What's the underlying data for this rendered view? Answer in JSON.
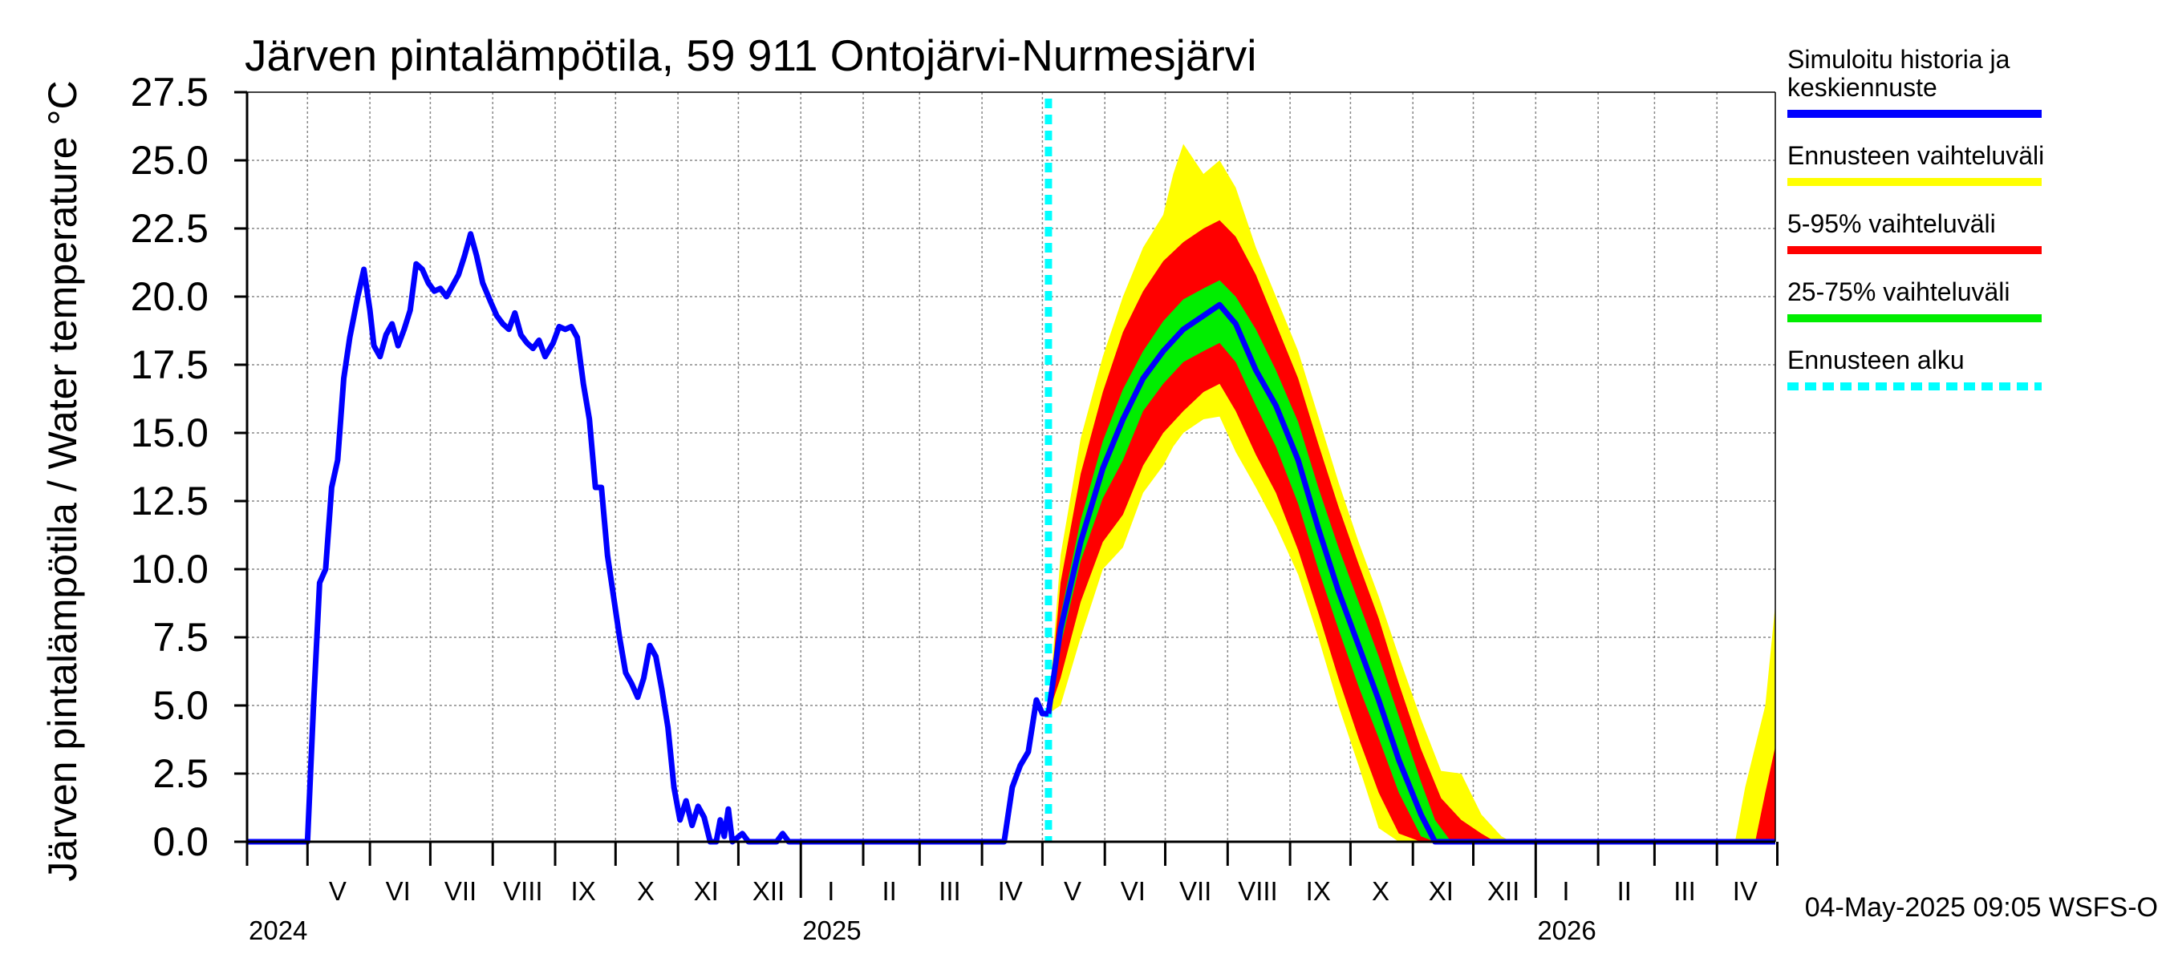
{
  "chart_data": {
    "type": "line",
    "title": "Järven pintalämpötila, 59 911 Ontojärvi-Nurmesjärvi",
    "ylabel": "Järven pintalämpötila / Water temperature °C",
    "xlabel": "",
    "ylim": [
      0,
      27.5
    ],
    "y_ticks": [
      "0.0",
      "2.5",
      "5.0",
      "7.5",
      "10.0",
      "12.5",
      "15.0",
      "17.5",
      "20.0",
      "22.5",
      "25.0",
      "27.5"
    ],
    "x_range": [
      "2024-04-01",
      "2026-04-30"
    ],
    "grid": true,
    "month_labels": [
      {
        "label": "V",
        "date": "2024-05-16"
      },
      {
        "label": "VI",
        "date": "2024-06-15"
      },
      {
        "label": "VII",
        "date": "2024-07-16"
      },
      {
        "label": "VIII",
        "date": "2024-08-16"
      },
      {
        "label": "IX",
        "date": "2024-09-15"
      },
      {
        "label": "X",
        "date": "2024-10-16"
      },
      {
        "label": "XI",
        "date": "2024-11-15"
      },
      {
        "label": "XII",
        "date": "2024-12-16"
      },
      {
        "label": "I",
        "date": "2025-01-16"
      },
      {
        "label": "II",
        "date": "2025-02-14"
      },
      {
        "label": "III",
        "date": "2025-03-16"
      },
      {
        "label": "IV",
        "date": "2025-04-15"
      },
      {
        "label": "V",
        "date": "2025-05-16"
      },
      {
        "label": "VI",
        "date": "2025-06-15"
      },
      {
        "label": "VII",
        "date": "2025-07-16"
      },
      {
        "label": "VIII",
        "date": "2025-08-16"
      },
      {
        "label": "IX",
        "date": "2025-09-15"
      },
      {
        "label": "X",
        "date": "2025-10-16"
      },
      {
        "label": "XI",
        "date": "2025-11-15"
      },
      {
        "label": "XII",
        "date": "2025-12-16"
      },
      {
        "label": "I",
        "date": "2026-01-16"
      },
      {
        "label": "II",
        "date": "2026-02-14"
      },
      {
        "label": "III",
        "date": "2026-03-16"
      },
      {
        "label": "IV",
        "date": "2026-04-15"
      }
    ],
    "year_labels": [
      {
        "label": "2024",
        "date": "2024-04-01"
      },
      {
        "label": "2025",
        "date": "2025-01-01"
      },
      {
        "label": "2026",
        "date": "2026-01-01"
      }
    ],
    "forecast_start": "2025-05-04",
    "colors": {
      "history": "#0000ff",
      "full_range": "#ffff00",
      "p5_95": "#ff0000",
      "p25_75": "#00ee00",
      "forecast_start": "#00ffff",
      "grid": "#888888"
    },
    "history": [
      [
        "2024-04-01",
        0
      ],
      [
        "2024-05-01",
        0
      ],
      [
        "2024-05-04",
        5.0
      ],
      [
        "2024-05-07",
        9.5
      ],
      [
        "2024-05-10",
        10.0
      ],
      [
        "2024-05-13",
        13.0
      ],
      [
        "2024-05-16",
        14.0
      ],
      [
        "2024-05-19",
        17.0
      ],
      [
        "2024-05-22",
        18.5
      ],
      [
        "2024-05-26",
        20.0
      ],
      [
        "2024-05-29",
        21.0
      ],
      [
        "2024-06-01",
        19.5
      ],
      [
        "2024-06-03",
        18.2
      ],
      [
        "2024-06-06",
        17.8
      ],
      [
        "2024-06-09",
        18.6
      ],
      [
        "2024-06-12",
        19.0
      ],
      [
        "2024-06-15",
        18.2
      ],
      [
        "2024-06-18",
        18.8
      ],
      [
        "2024-06-21",
        19.5
      ],
      [
        "2024-06-24",
        21.2
      ],
      [
        "2024-06-27",
        21.0
      ],
      [
        "2024-06-30",
        20.5
      ],
      [
        "2024-07-03",
        20.2
      ],
      [
        "2024-07-06",
        20.3
      ],
      [
        "2024-07-09",
        20.0
      ],
      [
        "2024-07-12",
        20.4
      ],
      [
        "2024-07-15",
        20.8
      ],
      [
        "2024-07-18",
        21.5
      ],
      [
        "2024-07-21",
        22.3
      ],
      [
        "2024-07-24",
        21.5
      ],
      [
        "2024-07-27",
        20.5
      ],
      [
        "2024-07-31",
        19.8
      ],
      [
        "2024-08-03",
        19.3
      ],
      [
        "2024-08-06",
        19.0
      ],
      [
        "2024-08-09",
        18.8
      ],
      [
        "2024-08-12",
        19.4
      ],
      [
        "2024-08-15",
        18.6
      ],
      [
        "2024-08-18",
        18.3
      ],
      [
        "2024-08-21",
        18.1
      ],
      [
        "2024-08-24",
        18.4
      ],
      [
        "2024-08-27",
        17.8
      ],
      [
        "2024-08-31",
        18.3
      ],
      [
        "2024-09-03",
        18.9
      ],
      [
        "2024-09-06",
        18.8
      ],
      [
        "2024-09-09",
        18.9
      ],
      [
        "2024-09-12",
        18.5
      ],
      [
        "2024-09-15",
        16.8
      ],
      [
        "2024-09-18",
        15.5
      ],
      [
        "2024-09-21",
        13.0
      ],
      [
        "2024-09-24",
        13.0
      ],
      [
        "2024-09-27",
        10.5
      ],
      [
        "2024-09-30",
        9.0
      ],
      [
        "2024-10-03",
        7.5
      ],
      [
        "2024-10-06",
        6.2
      ],
      [
        "2024-10-09",
        5.8
      ],
      [
        "2024-10-12",
        5.3
      ],
      [
        "2024-10-15",
        6.0
      ],
      [
        "2024-10-18",
        7.2
      ],
      [
        "2024-10-21",
        6.8
      ],
      [
        "2024-10-24",
        5.6
      ],
      [
        "2024-10-27",
        4.2
      ],
      [
        "2024-10-30",
        2.0
      ],
      [
        "2024-11-02",
        0.8
      ],
      [
        "2024-11-05",
        1.5
      ],
      [
        "2024-11-08",
        0.6
      ],
      [
        "2024-11-11",
        1.3
      ],
      [
        "2024-11-14",
        0.9
      ],
      [
        "2024-11-17",
        0.0
      ],
      [
        "2024-11-20",
        0.0
      ],
      [
        "2024-11-22",
        0.8
      ],
      [
        "2024-11-24",
        0.2
      ],
      [
        "2024-11-26",
        1.2
      ],
      [
        "2024-11-28",
        0.0
      ],
      [
        "2024-12-03",
        0.3
      ],
      [
        "2024-12-06",
        0.0
      ],
      [
        "2024-12-20",
        0.0
      ],
      [
        "2024-12-23",
        0.3
      ],
      [
        "2024-12-26",
        0.0
      ],
      [
        "2025-04-12",
        0.0
      ],
      [
        "2025-04-16",
        2.0
      ],
      [
        "2025-04-20",
        2.8
      ],
      [
        "2025-04-24",
        3.3
      ],
      [
        "2025-04-28",
        5.2
      ],
      [
        "2025-05-01",
        4.7
      ],
      [
        "2025-05-04",
        4.7
      ]
    ],
    "forecast_median": [
      [
        "2025-05-04",
        4.7
      ],
      [
        "2025-05-10",
        7.8
      ],
      [
        "2025-05-20",
        11.0
      ],
      [
        "2025-05-31",
        13.7
      ],
      [
        "2025-06-10",
        15.5
      ],
      [
        "2025-06-20",
        17.0
      ],
      [
        "2025-06-30",
        18.0
      ],
      [
        "2025-07-10",
        18.8
      ],
      [
        "2025-07-20",
        19.3
      ],
      [
        "2025-07-28",
        19.7
      ],
      [
        "2025-08-05",
        19.0
      ],
      [
        "2025-08-15",
        17.3
      ],
      [
        "2025-08-25",
        16.0
      ],
      [
        "2025-09-05",
        14.0
      ],
      [
        "2025-09-15",
        11.5
      ],
      [
        "2025-09-25",
        9.2
      ],
      [
        "2025-10-05",
        7.2
      ],
      [
        "2025-10-15",
        5.2
      ],
      [
        "2025-10-25",
        3.0
      ],
      [
        "2025-11-05",
        1.0
      ],
      [
        "2025-11-12",
        0.0
      ],
      [
        "2026-04-30",
        0.0
      ]
    ],
    "band_25_75": [
      [
        "2025-05-04",
        4.7,
        4.7
      ],
      [
        "2025-05-10",
        7.2,
        8.3
      ],
      [
        "2025-05-20",
        10.3,
        11.8
      ],
      [
        "2025-05-31",
        12.6,
        14.7
      ],
      [
        "2025-06-10",
        14.0,
        16.6
      ],
      [
        "2025-06-20",
        15.8,
        18.0
      ],
      [
        "2025-06-30",
        16.8,
        19.1
      ],
      [
        "2025-07-10",
        17.6,
        19.9
      ],
      [
        "2025-07-20",
        18.0,
        20.3
      ],
      [
        "2025-07-28",
        18.3,
        20.6
      ],
      [
        "2025-08-05",
        17.6,
        20.0
      ],
      [
        "2025-08-15",
        16.0,
        18.8
      ],
      [
        "2025-08-25",
        14.5,
        17.3
      ],
      [
        "2025-09-05",
        12.4,
        15.4
      ],
      [
        "2025-09-15",
        10.0,
        13.0
      ],
      [
        "2025-09-25",
        7.8,
        10.8
      ],
      [
        "2025-10-05",
        5.7,
        8.8
      ],
      [
        "2025-10-15",
        3.8,
        6.8
      ],
      [
        "2025-10-25",
        1.8,
        4.6
      ],
      [
        "2025-11-05",
        0.2,
        2.2
      ],
      [
        "2025-11-12",
        0.0,
        0.8
      ],
      [
        "2025-11-20",
        0.0,
        0.0
      ]
    ],
    "band_5_95": [
      [
        "2025-05-04",
        4.7,
        4.7
      ],
      [
        "2025-05-10",
        6.0,
        9.5
      ],
      [
        "2025-05-20",
        8.8,
        13.5
      ],
      [
        "2025-05-31",
        11.0,
        16.5
      ],
      [
        "2025-06-10",
        12.0,
        18.7
      ],
      [
        "2025-06-20",
        13.8,
        20.2
      ],
      [
        "2025-06-30",
        15.0,
        21.3
      ],
      [
        "2025-07-10",
        15.8,
        22.0
      ],
      [
        "2025-07-20",
        16.5,
        22.5
      ],
      [
        "2025-07-28",
        16.8,
        22.8
      ],
      [
        "2025-08-05",
        15.8,
        22.2
      ],
      [
        "2025-08-15",
        14.2,
        20.8
      ],
      [
        "2025-08-25",
        12.8,
        19.0
      ],
      [
        "2025-09-05",
        10.7,
        17.0
      ],
      [
        "2025-09-15",
        8.4,
        14.6
      ],
      [
        "2025-09-25",
        6.0,
        12.3
      ],
      [
        "2025-10-05",
        3.8,
        10.2
      ],
      [
        "2025-10-15",
        1.8,
        8.2
      ],
      [
        "2025-10-25",
        0.3,
        5.8
      ],
      [
        "2025-11-05",
        0.0,
        3.4
      ],
      [
        "2025-11-15",
        0.0,
        1.6
      ],
      [
        "2025-11-25",
        0.0,
        0.8
      ],
      [
        "2025-12-05",
        0.0,
        0.3
      ],
      [
        "2025-12-12",
        0.0,
        0.0
      ],
      [
        "2026-04-20",
        0.0,
        0.0
      ],
      [
        "2026-04-25",
        0.0,
        1.8
      ],
      [
        "2026-04-30",
        0.0,
        3.5
      ]
    ],
    "band_full": [
      [
        "2025-05-04",
        4.7,
        4.7
      ],
      [
        "2025-05-10",
        5.0,
        10.5
      ],
      [
        "2025-05-20",
        7.5,
        14.8
      ],
      [
        "2025-05-31",
        10.0,
        17.8
      ],
      [
        "2025-06-10",
        10.8,
        20.0
      ],
      [
        "2025-06-20",
        12.8,
        21.8
      ],
      [
        "2025-06-30",
        13.8,
        23.0
      ],
      [
        "2025-07-05",
        14.5,
        24.5
      ],
      [
        "2025-07-10",
        15.0,
        25.6
      ],
      [
        "2025-07-20",
        15.5,
        24.5
      ],
      [
        "2025-07-28",
        15.6,
        25.0
      ],
      [
        "2025-08-05",
        14.3,
        24.0
      ],
      [
        "2025-08-15",
        13.0,
        21.8
      ],
      [
        "2025-08-25",
        11.6,
        20.0
      ],
      [
        "2025-09-05",
        9.8,
        18.0
      ],
      [
        "2025-09-15",
        7.5,
        15.6
      ],
      [
        "2025-09-25",
        5.0,
        13.2
      ],
      [
        "2025-10-05",
        2.8,
        11.0
      ],
      [
        "2025-10-15",
        0.5,
        9.0
      ],
      [
        "2025-10-25",
        0.0,
        6.8
      ],
      [
        "2025-11-05",
        0.0,
        4.5
      ],
      [
        "2025-11-15",
        0.0,
        2.6
      ],
      [
        "2025-11-25",
        0.0,
        2.5
      ],
      [
        "2025-12-05",
        0.0,
        1.0
      ],
      [
        "2025-12-15",
        0.0,
        0.2
      ],
      [
        "2025-12-20",
        0.0,
        0.0
      ],
      [
        "2026-04-10",
        0.0,
        0.0
      ],
      [
        "2026-04-15",
        0.0,
        2.0
      ],
      [
        "2026-04-25",
        0.0,
        5.0
      ],
      [
        "2026-04-30",
        0.0,
        8.7
      ]
    ],
    "legend": [
      {
        "lines": [
          "Simuloitu historia ja",
          "keskiennuste"
        ],
        "color": "#0000ff",
        "style": "solid"
      },
      {
        "lines": [
          "Ennusteen vaihteluväli"
        ],
        "color": "#ffff00",
        "style": "solid"
      },
      {
        "lines": [
          "5-95% vaihteluväli"
        ],
        "color": "#ff0000",
        "style": "solid"
      },
      {
        "lines": [
          "25-75% vaihteluväli"
        ],
        "color": "#00ee00",
        "style": "solid"
      },
      {
        "lines": [
          "Ennusteen alku"
        ],
        "color": "#00ffff",
        "style": "dashed"
      }
    ],
    "timestamp": "04-May-2025 09:05 WSFS-O"
  }
}
